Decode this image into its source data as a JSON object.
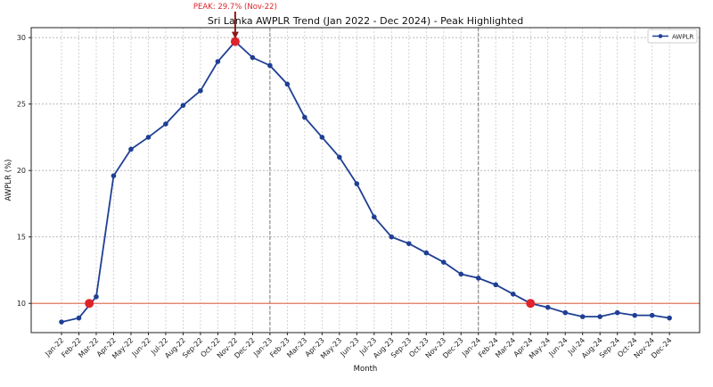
{
  "chart_data": {
    "type": "line",
    "title": "Sri Lanka AWPLR Trend (Jan 2022 - Dec 2024) - Peak Highlighted",
    "xlabel": "Month",
    "ylabel": "AWPLR (%)",
    "ylim": [
      7.8,
      30.75
    ],
    "yticks": [
      10,
      15,
      20,
      25,
      30
    ],
    "grid": true,
    "legend": {
      "position": "top-right",
      "entries": [
        "AWPLR"
      ]
    },
    "colors": {
      "line": "#1f3f94",
      "highlight": "#e0242b",
      "threshold": "#e07a5f",
      "year_divider": "#777777"
    },
    "categories": [
      "Jan-22",
      "Feb-22",
      "Mar-22",
      "Apr-22",
      "May-22",
      "Jun-22",
      "Jul-22",
      "Aug-22",
      "Sep-22",
      "Oct-22",
      "Nov-22",
      "Dec-22",
      "Jan-23",
      "Feb-23",
      "Mar-23",
      "Apr-23",
      "May-23",
      "Jun-23",
      "Jul-23",
      "Aug-23",
      "Sep-23",
      "Oct-23",
      "Nov-23",
      "Dec-23",
      "Jan-24",
      "Feb-24",
      "Mar-24",
      "Apr-24",
      "May-24",
      "Jun-24",
      "Jul-24",
      "Aug-24",
      "Sep-24",
      "Oct-24",
      "Nov-24",
      "Dec-24"
    ],
    "series": [
      {
        "name": "AWPLR",
        "values": [
          8.6,
          8.9,
          10.5,
          19.6,
          21.6,
          22.5,
          23.5,
          24.9,
          26.0,
          28.2,
          29.7,
          28.5,
          27.9,
          26.5,
          24.0,
          22.5,
          21.0,
          19.0,
          16.5,
          15.0,
          14.5,
          13.8,
          13.1,
          12.2,
          11.9,
          11.4,
          10.7,
          10.0,
          9.7,
          9.3,
          9.0,
          9.0,
          9.3,
          9.1,
          9.1,
          8.9
        ]
      }
    ],
    "threshold": 10,
    "threshold_crossings": [
      {
        "index": 1.6,
        "value": 10.0
      },
      {
        "index": 27,
        "value": 10.0
      }
    ],
    "year_dividers": [
      "Jan-23",
      "Jan-24"
    ],
    "annotation": {
      "text": "PEAK: 29.7% (Nov-22)",
      "index": 10,
      "value": 29.7
    }
  }
}
